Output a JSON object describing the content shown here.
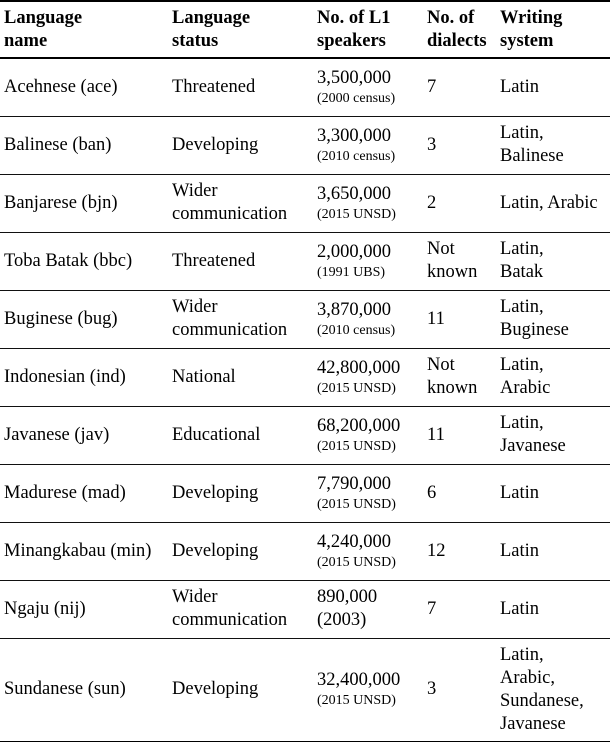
{
  "table": {
    "headers": [
      "Language\nname",
      "Language\nstatus",
      "No. of L1\nspeakers",
      "No. of\ndialects",
      "Writing\nsystem"
    ],
    "rows": [
      {
        "name": "Acehnese (ace)",
        "status": "Threatened",
        "speakers": "3,500,000",
        "source": "(2000 census)",
        "dialects": "7",
        "writing": "Latin"
      },
      {
        "name": "Balinese (ban)",
        "status": "Developing",
        "speakers": "3,300,000",
        "source": "(2010 census)",
        "dialects": "3",
        "writing": "Latin,\nBalinese"
      },
      {
        "name": "Banjarese (bjn)",
        "status": "Wider\ncommunication",
        "speakers": "3,650,000",
        "source": "(2015 UNSD)",
        "dialects": "2",
        "writing": "Latin, Arabic"
      },
      {
        "name": "Toba Batak (bbc)",
        "status": "Threatened",
        "speakers": "2,000,000",
        "source": "(1991 UBS)",
        "dialects": "Not\nknown",
        "writing": "Latin,\nBatak"
      },
      {
        "name": "Buginese (bug)",
        "status": "Wider\ncommunication",
        "speakers": "3,870,000",
        "source": "(2010 census)",
        "dialects": "11",
        "writing": "Latin,\nBuginese"
      },
      {
        "name": "Indonesian (ind)",
        "status": "National",
        "speakers": "42,800,000",
        "source": "(2015 UNSD)",
        "dialects": "Not\nknown",
        "writing": "Latin,\nArabic"
      },
      {
        "name": "Javanese (jav)",
        "status": "Educational",
        "speakers": "68,200,000",
        "source": "(2015 UNSD)",
        "dialects": "11",
        "writing": "Latin,\nJavanese"
      },
      {
        "name": "Madurese (mad)",
        "status": "Developing",
        "speakers": "7,790,000",
        "source": "(2015 UNSD)",
        "dialects": "6",
        "writing": "Latin"
      },
      {
        "name": "Minangkabau (min)",
        "status": "Developing",
        "speakers": "4,240,000",
        "source": "(2015 UNSD)",
        "dialects": "12",
        "writing": "Latin"
      },
      {
        "name": "Ngaju (nij)",
        "status": "Wider\ncommunication",
        "speakers": "890,000\n(2003)",
        "source": "",
        "dialects": "7",
        "writing": "Latin"
      },
      {
        "name": "Sundanese (sun)",
        "status": "Developing",
        "speakers": "32,400,000",
        "source": "(2015 UNSD)",
        "dialects": "3",
        "writing": "Latin,\nArabic,\nSundanese,\nJavanese"
      }
    ]
  }
}
